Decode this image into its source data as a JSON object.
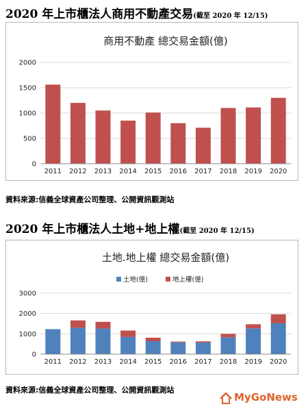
{
  "headings": {
    "h1_main": "2020 年上市櫃法人商用不動產交易",
    "h1_sub": "(截至 2020 年 12/15)",
    "h2_main": "2020 年上市櫃法人土地+地上權",
    "h2_sub": "(截至 2020 年 12/15)"
  },
  "sources": {
    "s1": "資料來源:信義全球資產公司整理、公開資訊觀測站",
    "s2": "資料來源:信義全球資產公司整理、公開資訊觀測站"
  },
  "logo": {
    "text": "MyGoNews",
    "icon": "house-icon"
  },
  "colors": {
    "red_bar": "#c0504d",
    "blue_bar": "#4f81bd",
    "logo": "#e0622a",
    "grid": "#d9d9d9"
  },
  "chart_data": [
    {
      "type": "bar",
      "title": "商用不動產 總交易金額(億)",
      "categories": [
        "2011",
        "2012",
        "2013",
        "2014",
        "2015",
        "2016",
        "2017",
        "2018",
        "2019",
        "2020"
      ],
      "values": [
        1560,
        1200,
        1050,
        850,
        1010,
        800,
        710,
        1100,
        1110,
        1300
      ],
      "ylim": [
        0,
        2000
      ],
      "yticks": [
        "0",
        "500",
        "1000",
        "1500",
        "2000"
      ],
      "grid": true,
      "color": "#c0504d"
    },
    {
      "type": "bar",
      "stacked": true,
      "title": "土地.地上權 總交易金額(億)",
      "categories": [
        "2011",
        "2012",
        "2013",
        "2014",
        "2015",
        "2016",
        "2017",
        "2018",
        "2019",
        "2020"
      ],
      "series": [
        {
          "name": "土地(億)",
          "color": "#4f81bd",
          "values": [
            1230,
            1300,
            1260,
            850,
            640,
            580,
            570,
            830,
            1270,
            1520
          ]
        },
        {
          "name": "地上權(億)",
          "color": "#c0504d",
          "values": [
            0,
            360,
            330,
            310,
            170,
            40,
            60,
            170,
            200,
            440
          ]
        }
      ],
      "ylim": [
        0,
        3000
      ],
      "yticks": [
        "0",
        "1000",
        "2000",
        "3000"
      ],
      "legend": "top-center",
      "grid": true
    }
  ]
}
